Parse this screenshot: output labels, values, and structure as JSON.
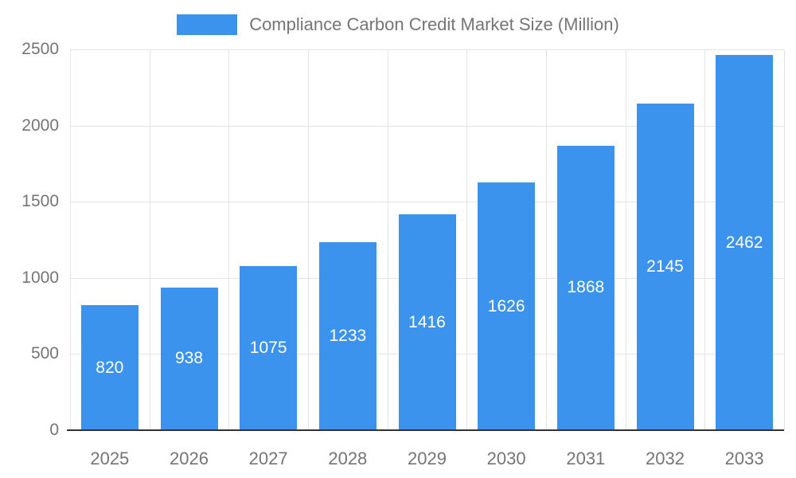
{
  "chart_data": {
    "type": "bar",
    "title": "Compliance Carbon Credit Market Size (Million)",
    "legend": {
      "position": "top",
      "entries": [
        "Compliance Carbon Credit Market Size (Million)"
      ]
    },
    "categories": [
      "2025",
      "2026",
      "2027",
      "2028",
      "2029",
      "2030",
      "2031",
      "2032",
      "2033"
    ],
    "values": [
      820,
      938,
      1075,
      1233,
      1416,
      1626,
      1868,
      2145,
      2462
    ],
    "xlabel": "",
    "ylabel": "",
    "ylim": [
      0,
      2500
    ],
    "y_ticks": [
      0,
      500,
      1000,
      1500,
      2000,
      2500
    ],
    "grid": true,
    "value_labels_visible": true,
    "colors": {
      "bar": "#3b93ee",
      "grid": "#e4e4e4",
      "axis_line": "#333333",
      "tick_label": "#757575",
      "title": "#757575",
      "value_label": "#ffffff",
      "background": "#ffffff"
    }
  }
}
